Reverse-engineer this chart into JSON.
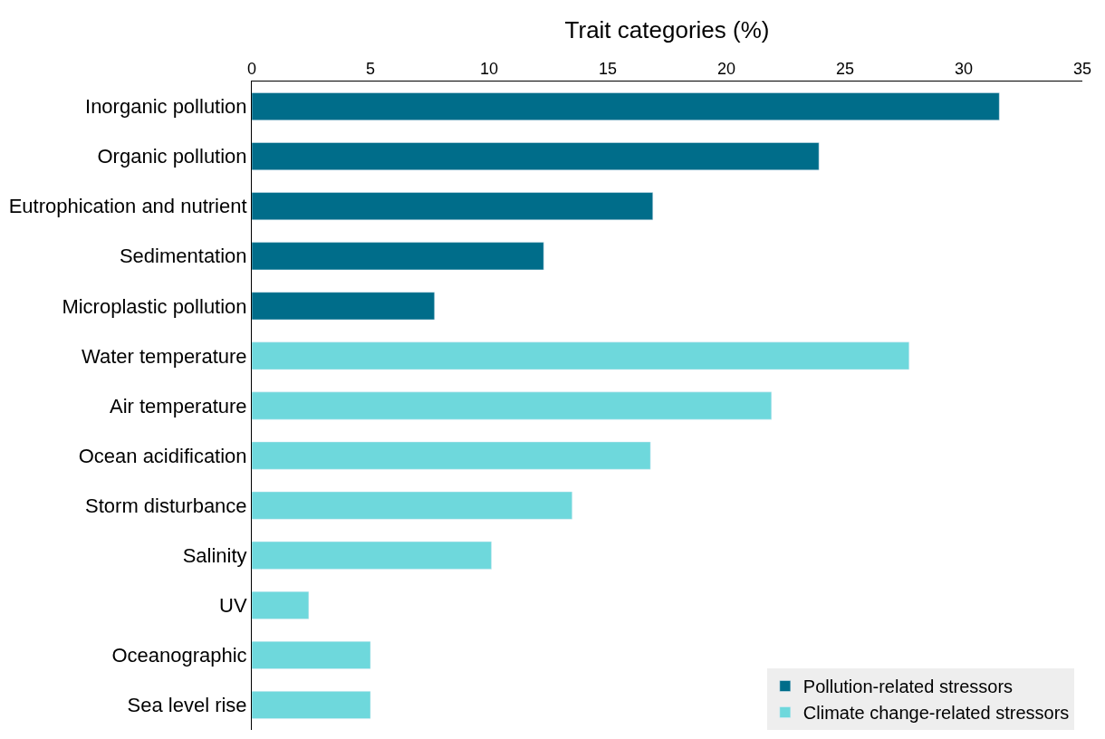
{
  "chart_data": {
    "type": "bar",
    "orientation": "horizontal",
    "xlabel": "Trait categories (%)",
    "categories": [
      "Inorganic pollution",
      "Organic pollution",
      "Eutrophication and nutrient",
      "Sedimentation",
      "Microplastic pollution",
      "Water temperature",
      "Air temperature",
      "Ocean acidification",
      "Storm disturbance",
      "Salinity",
      "UV",
      "Oceanographic",
      "Sea level rise"
    ],
    "series": [
      {
        "name": "Pollution-related stressors",
        "color": "#006d8a",
        "values": [
          31.5,
          23.9,
          16.9,
          12.3,
          7.7,
          null,
          null,
          null,
          null,
          null,
          null,
          null,
          null
        ]
      },
      {
        "name": "Climate change-related stressors",
        "color": "#6ed8dc",
        "values": [
          null,
          null,
          null,
          null,
          null,
          27.7,
          21.9,
          16.8,
          13.5,
          10.1,
          2.4,
          5.0,
          5.0
        ]
      }
    ],
    "xlim": [
      0,
      35
    ],
    "xticks": [
      0,
      5,
      10,
      15,
      20,
      25,
      30,
      35
    ],
    "legend": "bottom right"
  }
}
